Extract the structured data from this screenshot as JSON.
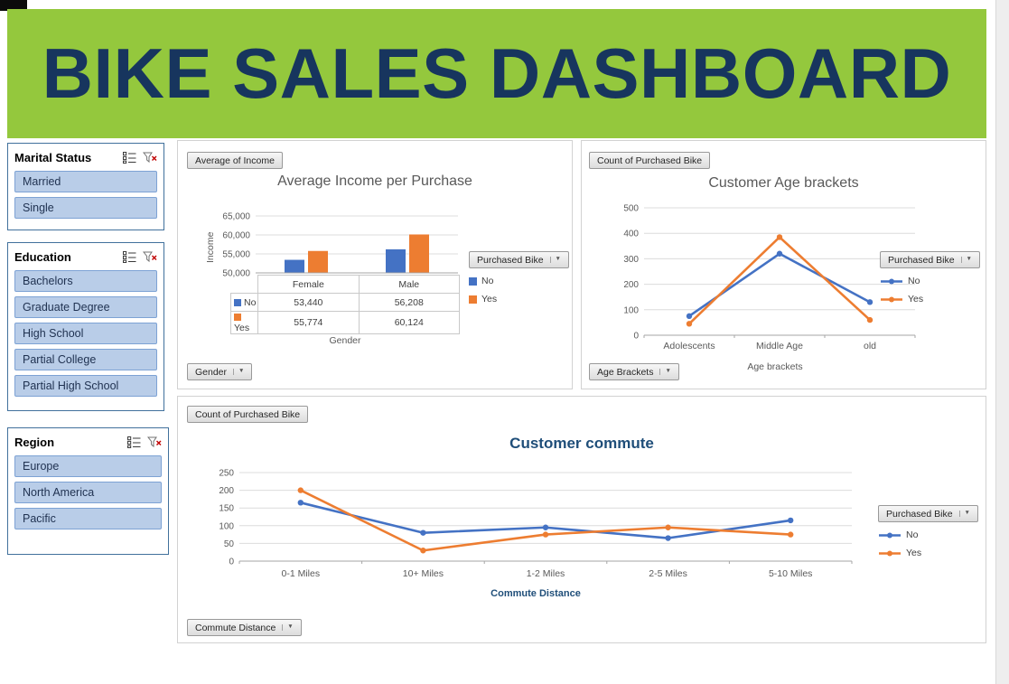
{
  "glyphs": {
    "dropdown_arrow": "▼"
  },
  "header": {
    "title": "BIKE SALES DASHBOARD",
    "bg_color": "#94C83D",
    "text_color": "#17355E"
  },
  "theme": {
    "slicer_item_fill": "#B9CDE8",
    "slicer_item_border": "#7DA2D4",
    "slicer_border": "#41719C",
    "series_no_color": "#4472C4",
    "series_yes_color": "#ED7D31"
  },
  "slicers": [
    {
      "title": "Marital Status",
      "items": [
        "Married",
        "Single"
      ]
    },
    {
      "title": "Education",
      "items": [
        "Bachelors",
        "Graduate Degree",
        "High School",
        "Partial College",
        "Partial High School"
      ]
    },
    {
      "title": "Region",
      "items": [
        "Europe",
        "North America",
        "Pacific"
      ]
    }
  ],
  "chart_data": [
    {
      "type": "bar",
      "title": "Average Income per Purchase",
      "value_field_button": "Average of Income",
      "axis_field_button": "Gender",
      "legend_title": "Purchased Bike",
      "xlabel": "Gender",
      "ylabel": "Income",
      "categories": [
        "Female",
        "Male"
      ],
      "series": [
        {
          "name": "No",
          "color": "#4472C4",
          "values": [
            53440,
            56208
          ]
        },
        {
          "name": "Yes",
          "color": "#ED7D31",
          "values": [
            55774,
            60124
          ]
        }
      ],
      "ylim": [
        50000,
        65000
      ],
      "yticks": [
        50000,
        55000,
        60000,
        65000
      ],
      "ytick_labels": [
        "50,000",
        "55,000",
        "60,000",
        "65,000"
      ],
      "grid": true,
      "legend_position": "right",
      "data_table": {
        "col_headers": [
          "Female",
          "Male"
        ],
        "rows": [
          {
            "name": "No",
            "cells": [
              "53,440",
              "56,208"
            ]
          },
          {
            "name": "Yes",
            "cells": [
              "55,774",
              "60,124"
            ]
          }
        ]
      }
    },
    {
      "type": "line",
      "title": "Customer Age brackets",
      "value_field_button": "Count of Purchased Bike",
      "axis_field_button": "Age Brackets",
      "legend_title": "Purchased Bike",
      "xlabel": "Age brackets",
      "categories": [
        "Adolescents",
        "Middle Age",
        "old"
      ],
      "series": [
        {
          "name": "No",
          "color": "#4472C4",
          "values": [
            75,
            320,
            130
          ]
        },
        {
          "name": "Yes",
          "color": "#ED7D31",
          "values": [
            45,
            385,
            60
          ]
        }
      ],
      "ylim": [
        0,
        500
      ],
      "yticks": [
        0,
        100,
        200,
        300,
        400,
        500
      ],
      "grid": true,
      "legend_position": "right"
    },
    {
      "type": "line",
      "title": "Customer commute",
      "value_field_button": "Count of Purchased Bike",
      "axis_field_button": "Commute Distance",
      "legend_title": "Purchased Bike",
      "xlabel": "Commute Distance",
      "categories": [
        "0-1 Miles",
        "10+ Miles",
        "1-2 Miles",
        "2-5 Miles",
        "5-10 Miles"
      ],
      "series": [
        {
          "name": "No",
          "color": "#4472C4",
          "values": [
            165,
            80,
            95,
            65,
            115
          ]
        },
        {
          "name": "Yes",
          "color": "#ED7D31",
          "values": [
            200,
            30,
            75,
            95,
            75
          ]
        }
      ],
      "ylim": [
        0,
        250
      ],
      "yticks": [
        0,
        50,
        100,
        150,
        200,
        250
      ],
      "grid": true,
      "legend_position": "right"
    }
  ]
}
